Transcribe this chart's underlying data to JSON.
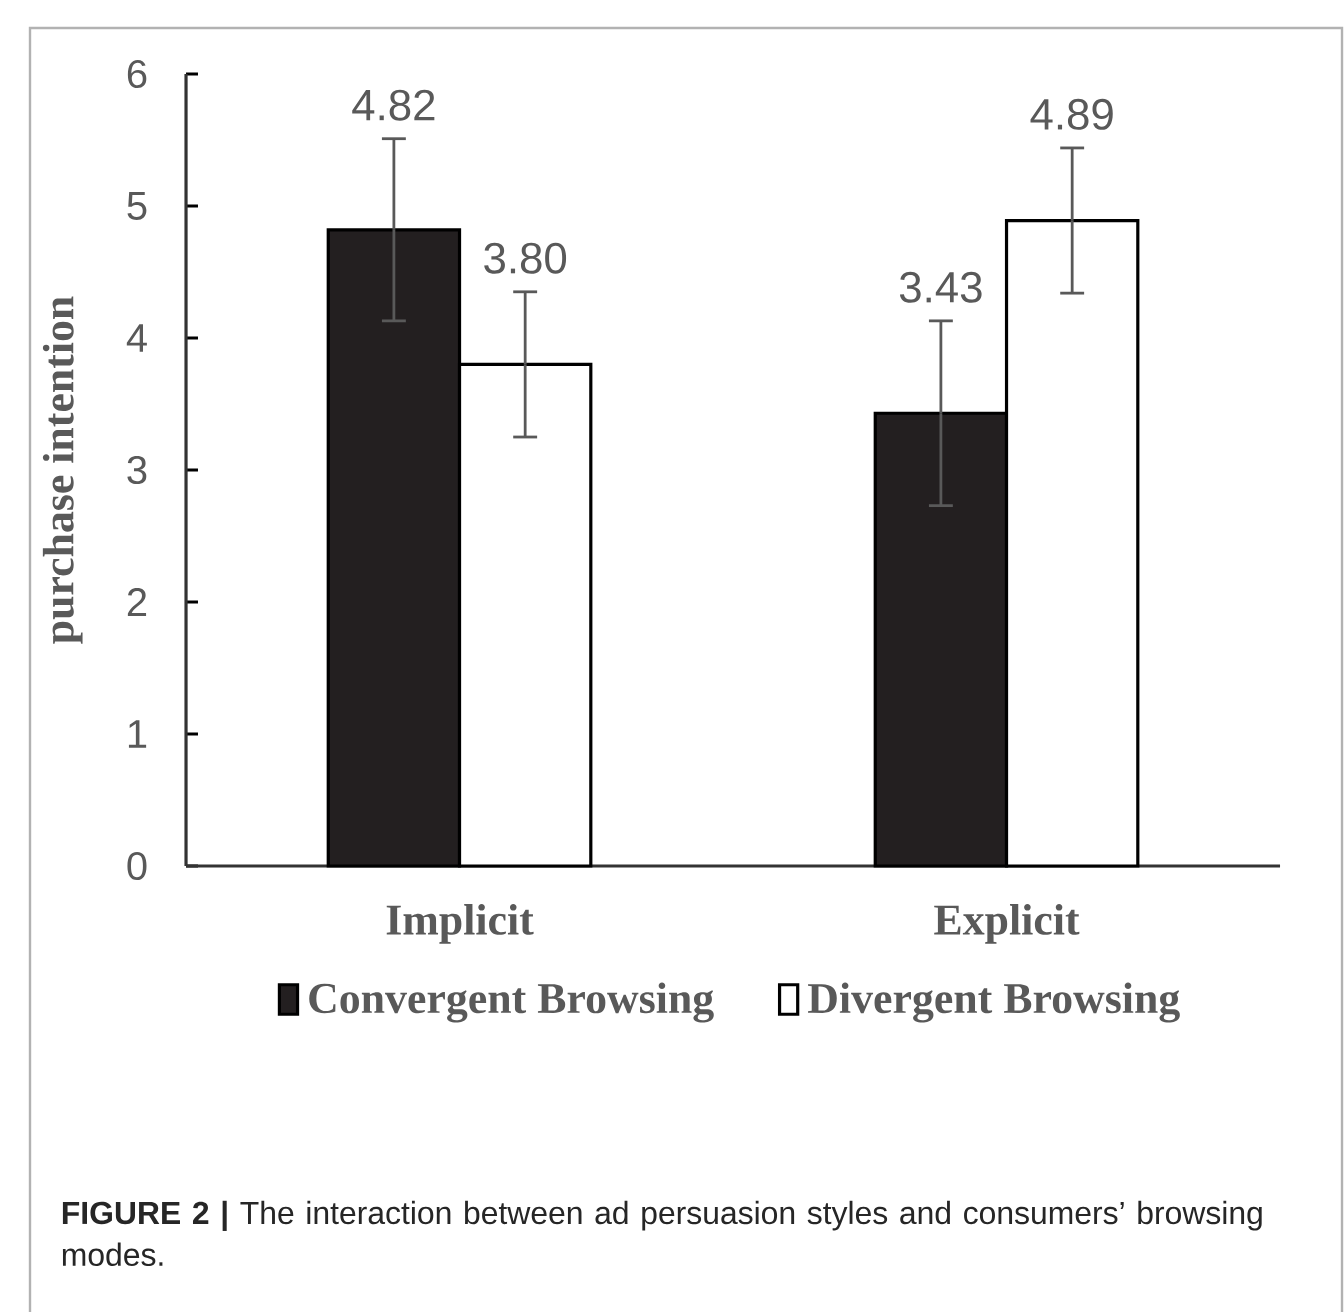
{
  "chart_data": {
    "type": "bar",
    "ylabel": "purchase intention",
    "categories": [
      "Implicit",
      "Explicit"
    ],
    "series": [
      {
        "name": "Convergent Browsing",
        "color": "#231f20",
        "values": [
          4.82,
          3.43
        ],
        "value_labels": [
          "4.82",
          "3.43"
        ],
        "errors": [
          [
            4.13,
            5.51
          ],
          [
            2.73,
            4.13
          ]
        ]
      },
      {
        "name": "Divergent Browsing",
        "color": "#ffffff",
        "values": [
          3.8,
          4.89
        ],
        "value_labels": [
          "3.80",
          "4.89"
        ],
        "errors": [
          [
            3.25,
            4.35
          ],
          [
            4.34,
            5.44
          ]
        ]
      }
    ],
    "ylim": [
      0,
      6
    ],
    "yticks": [
      0,
      1,
      2,
      3,
      4,
      5,
      6
    ],
    "legend": "bottom",
    "grid": false,
    "annotations": [
      "**FIGURE 2 |** The interaction between ad persuasion styles and consumers’ browsing modes."
    ]
  }
}
